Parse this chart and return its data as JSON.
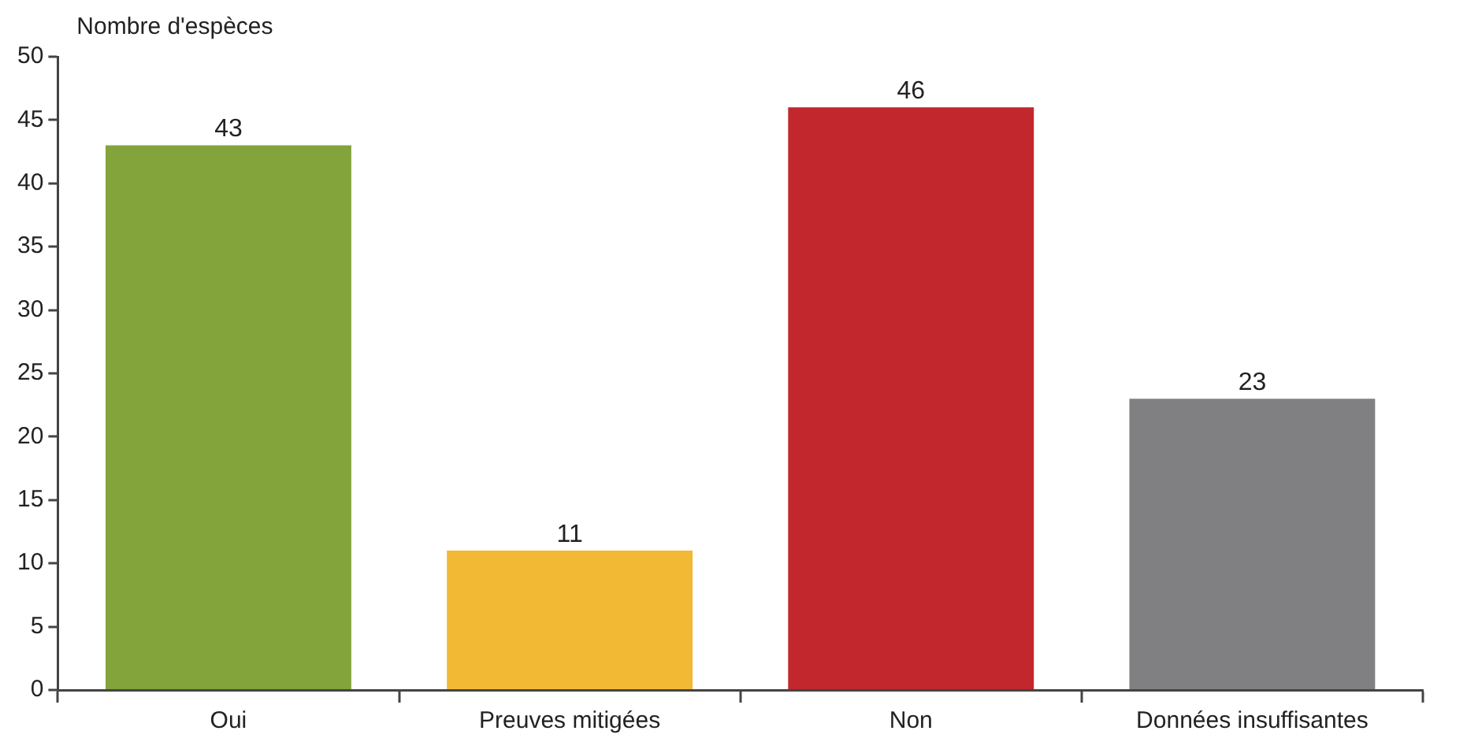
{
  "chart_data": {
    "type": "bar",
    "ylabel": "Nombre d'espèces",
    "categories": [
      "Oui",
      "Preuves mitigées",
      "Non",
      "Données insuffisantes"
    ],
    "values": [
      43,
      11,
      46,
      23
    ],
    "colors": [
      "#82a43a",
      "#f2b935",
      "#c1272d",
      "#808083"
    ],
    "ylim": [
      0,
      50
    ],
    "yticks": [
      0,
      5,
      10,
      15,
      20,
      25,
      30,
      35,
      40,
      45,
      50
    ],
    "grid": false,
    "legend": false,
    "data_labels": true
  }
}
